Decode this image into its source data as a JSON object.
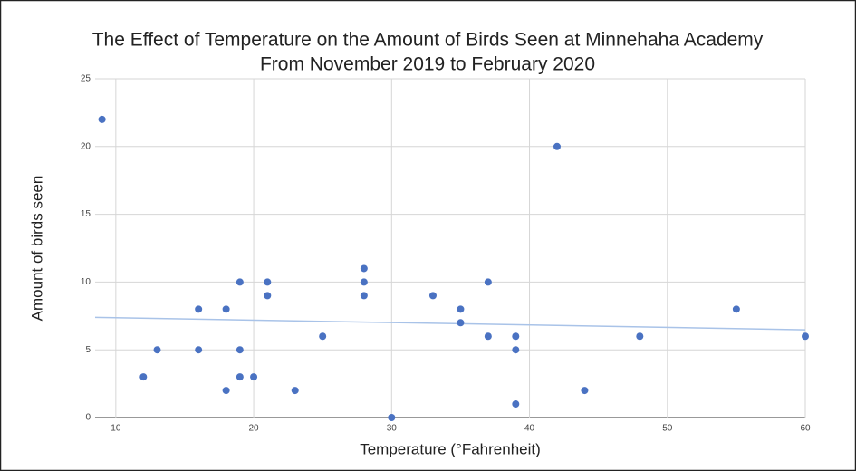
{
  "chart_data": {
    "type": "scatter",
    "title": [
      "The Effect of Temperature on the Amount of Birds Seen at Minnehaha Academy",
      "From November 2019 to February 2020"
    ],
    "x_label": "Temperature (°Fahrenheit)",
    "y_label": "Amount of birds seen",
    "series": [
      {
        "name": "Amount of birds seen",
        "color": "#4a72c2",
        "x": [
          9,
          12,
          13,
          16,
          16,
          18,
          18,
          19,
          19,
          19,
          20,
          21,
          21,
          23,
          25,
          28,
          28,
          28,
          30,
          33,
          35,
          35,
          37,
          37,
          39,
          39,
          39,
          42,
          44,
          48,
          55,
          60
        ],
        "values": [
          22,
          3,
          5,
          8,
          5,
          8,
          2,
          10,
          5,
          3,
          3,
          10,
          9,
          2,
          6,
          11,
          10,
          9,
          0,
          9,
          8,
          7,
          10,
          6,
          6,
          5,
          1,
          20,
          2,
          6,
          8,
          6
        ]
      }
    ],
    "trendline": true,
    "trendline_color": "#a9c3e8",
    "xlim": [
      8.5,
      60
    ],
    "xticks": [
      10,
      20,
      30,
      40,
      50,
      60
    ],
    "ylim": [
      0,
      25
    ],
    "yticks": [
      0,
      5,
      10,
      15,
      20,
      25
    ],
    "grid": true
  }
}
